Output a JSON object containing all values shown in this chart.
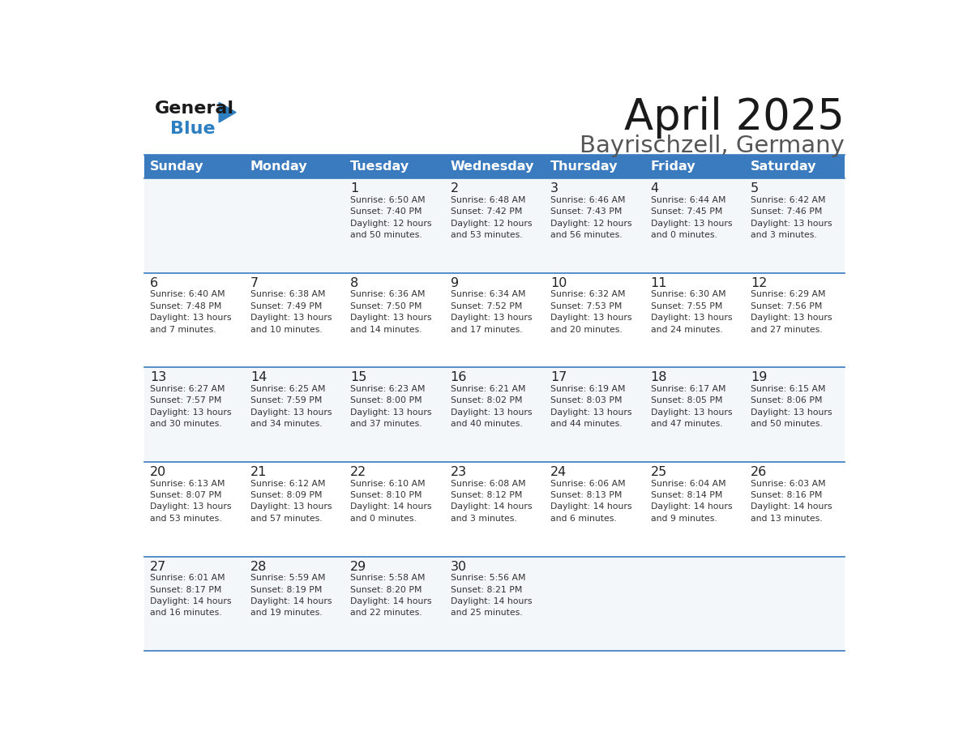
{
  "title": "April 2025",
  "subtitle": "Bayrischzell, Germany",
  "header_bg": "#3a7bbf",
  "header_text": "#ffffff",
  "day_headers": [
    "Sunday",
    "Monday",
    "Tuesday",
    "Wednesday",
    "Thursday",
    "Friday",
    "Saturday"
  ],
  "cell_bg": "#ffffff",
  "cell_border": "#3a7bbf",
  "date_color": "#222222",
  "info_color": "#333333",
  "background": "#ffffff",
  "logo_black": "#1a1a1a",
  "logo_blue": "#2e7fc1",
  "calendar": [
    [
      {
        "day": "",
        "info": ""
      },
      {
        "day": "",
        "info": ""
      },
      {
        "day": "1",
        "info": "Sunrise: 6:50 AM\nSunset: 7:40 PM\nDaylight: 12 hours\nand 50 minutes."
      },
      {
        "day": "2",
        "info": "Sunrise: 6:48 AM\nSunset: 7:42 PM\nDaylight: 12 hours\nand 53 minutes."
      },
      {
        "day": "3",
        "info": "Sunrise: 6:46 AM\nSunset: 7:43 PM\nDaylight: 12 hours\nand 56 minutes."
      },
      {
        "day": "4",
        "info": "Sunrise: 6:44 AM\nSunset: 7:45 PM\nDaylight: 13 hours\nand 0 minutes."
      },
      {
        "day": "5",
        "info": "Sunrise: 6:42 AM\nSunset: 7:46 PM\nDaylight: 13 hours\nand 3 minutes."
      }
    ],
    [
      {
        "day": "6",
        "info": "Sunrise: 6:40 AM\nSunset: 7:48 PM\nDaylight: 13 hours\nand 7 minutes."
      },
      {
        "day": "7",
        "info": "Sunrise: 6:38 AM\nSunset: 7:49 PM\nDaylight: 13 hours\nand 10 minutes."
      },
      {
        "day": "8",
        "info": "Sunrise: 6:36 AM\nSunset: 7:50 PM\nDaylight: 13 hours\nand 14 minutes."
      },
      {
        "day": "9",
        "info": "Sunrise: 6:34 AM\nSunset: 7:52 PM\nDaylight: 13 hours\nand 17 minutes."
      },
      {
        "day": "10",
        "info": "Sunrise: 6:32 AM\nSunset: 7:53 PM\nDaylight: 13 hours\nand 20 minutes."
      },
      {
        "day": "11",
        "info": "Sunrise: 6:30 AM\nSunset: 7:55 PM\nDaylight: 13 hours\nand 24 minutes."
      },
      {
        "day": "12",
        "info": "Sunrise: 6:29 AM\nSunset: 7:56 PM\nDaylight: 13 hours\nand 27 minutes."
      }
    ],
    [
      {
        "day": "13",
        "info": "Sunrise: 6:27 AM\nSunset: 7:57 PM\nDaylight: 13 hours\nand 30 minutes."
      },
      {
        "day": "14",
        "info": "Sunrise: 6:25 AM\nSunset: 7:59 PM\nDaylight: 13 hours\nand 34 minutes."
      },
      {
        "day": "15",
        "info": "Sunrise: 6:23 AM\nSunset: 8:00 PM\nDaylight: 13 hours\nand 37 minutes."
      },
      {
        "day": "16",
        "info": "Sunrise: 6:21 AM\nSunset: 8:02 PM\nDaylight: 13 hours\nand 40 minutes."
      },
      {
        "day": "17",
        "info": "Sunrise: 6:19 AM\nSunset: 8:03 PM\nDaylight: 13 hours\nand 44 minutes."
      },
      {
        "day": "18",
        "info": "Sunrise: 6:17 AM\nSunset: 8:05 PM\nDaylight: 13 hours\nand 47 minutes."
      },
      {
        "day": "19",
        "info": "Sunrise: 6:15 AM\nSunset: 8:06 PM\nDaylight: 13 hours\nand 50 minutes."
      }
    ],
    [
      {
        "day": "20",
        "info": "Sunrise: 6:13 AM\nSunset: 8:07 PM\nDaylight: 13 hours\nand 53 minutes."
      },
      {
        "day": "21",
        "info": "Sunrise: 6:12 AM\nSunset: 8:09 PM\nDaylight: 13 hours\nand 57 minutes."
      },
      {
        "day": "22",
        "info": "Sunrise: 6:10 AM\nSunset: 8:10 PM\nDaylight: 14 hours\nand 0 minutes."
      },
      {
        "day": "23",
        "info": "Sunrise: 6:08 AM\nSunset: 8:12 PM\nDaylight: 14 hours\nand 3 minutes."
      },
      {
        "day": "24",
        "info": "Sunrise: 6:06 AM\nSunset: 8:13 PM\nDaylight: 14 hours\nand 6 minutes."
      },
      {
        "day": "25",
        "info": "Sunrise: 6:04 AM\nSunset: 8:14 PM\nDaylight: 14 hours\nand 9 minutes."
      },
      {
        "day": "26",
        "info": "Sunrise: 6:03 AM\nSunset: 8:16 PM\nDaylight: 14 hours\nand 13 minutes."
      }
    ],
    [
      {
        "day": "27",
        "info": "Sunrise: 6:01 AM\nSunset: 8:17 PM\nDaylight: 14 hours\nand 16 minutes."
      },
      {
        "day": "28",
        "info": "Sunrise: 5:59 AM\nSunset: 8:19 PM\nDaylight: 14 hours\nand 19 minutes."
      },
      {
        "day": "29",
        "info": "Sunrise: 5:58 AM\nSunset: 8:20 PM\nDaylight: 14 hours\nand 22 minutes."
      },
      {
        "day": "30",
        "info": "Sunrise: 5:56 AM\nSunset: 8:21 PM\nDaylight: 14 hours\nand 25 minutes."
      },
      {
        "day": "",
        "info": ""
      },
      {
        "day": "",
        "info": ""
      },
      {
        "day": "",
        "info": ""
      }
    ]
  ]
}
